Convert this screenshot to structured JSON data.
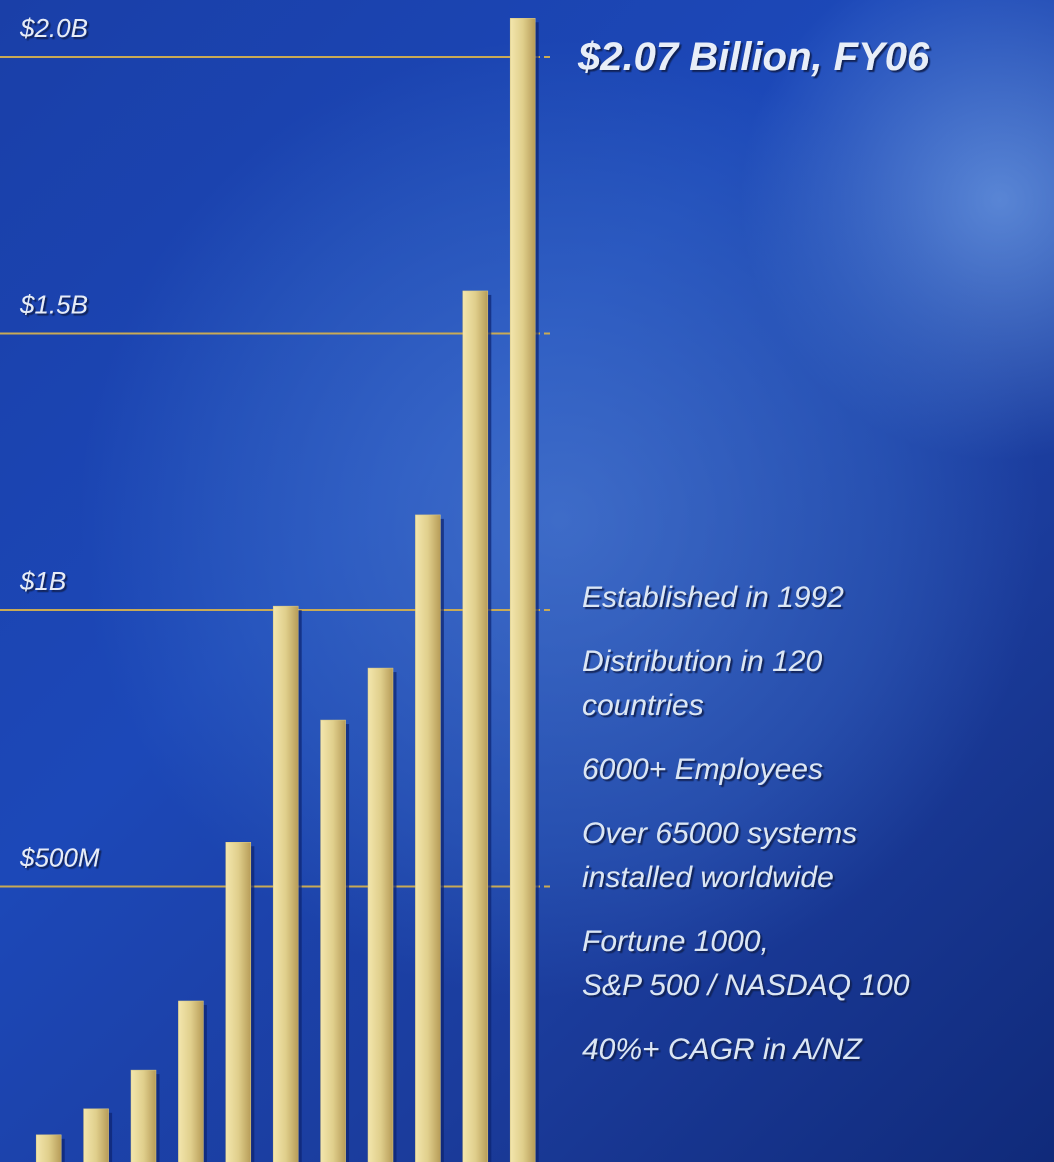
{
  "chart_data": {
    "type": "bar",
    "title": "$2.07 Billion, FY06",
    "categories": [
      null,
      null,
      null,
      null,
      null,
      null,
      null,
      null,
      null,
      null,
      null
    ],
    "values": [
      51,
      98,
      168,
      293,
      580,
      1007,
      801,
      895,
      1172,
      1577,
      2070
    ],
    "color": "#dccb86",
    "ylim": [
      0,
      2100
    ],
    "yticks": [
      {
        "value": 500,
        "label": "$500M"
      },
      {
        "value": 1000,
        "label": "$1B"
      },
      {
        "value": 1500,
        "label": "$1.5B"
      },
      {
        "value": 2000,
        "label": "$2.0B"
      }
    ],
    "grid": true,
    "annotations": [
      [
        "Established in 1992"
      ],
      [
        "Distribution in 120",
        "countries"
      ],
      [
        "6000+ Employees"
      ],
      [
        "Over 65000 systems",
        "installed worldwide"
      ],
      [
        "Fortune 1000,",
        "S&P 500 / NASDAQ 100"
      ],
      [
        "40%+ CAGR in A/NZ"
      ]
    ]
  }
}
